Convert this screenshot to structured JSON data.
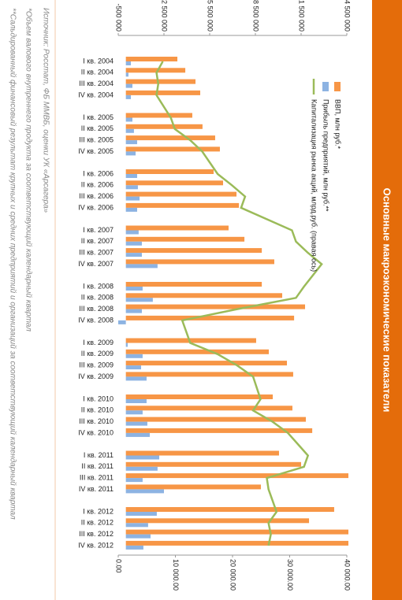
{
  "chart_data": {
    "type": "bar",
    "title": "Основные макроэкономические показатели",
    "categories": [
      "I кв. 2004",
      "II кв. 2004",
      "III кв. 2004",
      "IV кв. 2004",
      "I кв. 2005",
      "II кв. 2005",
      "III кв. 2005",
      "IV кв. 2005",
      "I кв. 2006",
      "II кв. 2006",
      "III кв. 2006",
      "IV кв. 2006",
      "I кв. 2007",
      "II кв. 2007",
      "III кв. 2007",
      "IV кв. 2007",
      "I кв. 2008",
      "II кв. 2008",
      "III кв. 2008",
      "IV кв. 2008",
      "I кв. 2009",
      "II кв. 2009",
      "III кв. 2009",
      "IV кв. 2009",
      "I кв. 2010",
      "II кв. 2010",
      "III кв. 2010",
      "IV кв. 2010",
      "I кв. 2011",
      "II кв. 2011",
      "III кв. 2011",
      "IV кв. 2011",
      "I кв. 2012",
      "II кв. 2012",
      "III кв. 2012",
      "IV кв. 2012"
    ],
    "series": [
      {
        "name": "ВВП, млн руб.*",
        "color": "#f79646",
        "values": [
          3380000,
          3900000,
          4570000,
          4880000,
          4360000,
          5030000,
          5860000,
          6170000,
          5760000,
          6380000,
          7260000,
          7420000,
          6740000,
          7780000,
          8920000,
          9740000,
          8920000,
          10260000,
          11760000,
          11040000,
          8550000,
          9380000,
          10570000,
          10980000,
          9640000,
          10930000,
          11810000,
          12230000,
          10050000,
          11500000,
          15000000,
          8860000,
          13670000,
          12020000,
          15000000,
          15200000
        ]
      },
      {
        "name": "Прибыль предприятий, млн руб.**",
        "color": "#8db3e2",
        "values": [
          330000,
          170000,
          430000,
          330000,
          430000,
          530000,
          740000,
          640000,
          740000,
          790000,
          900000,
          740000,
          840000,
          1050000,
          1050000,
          2080000,
          1100000,
          1770000,
          1050000,
          -500000,
          120000,
          1100000,
          1000000,
          1360000,
          1360000,
          1100000,
          1410000,
          1570000,
          2190000,
          2080000,
          1100000,
          2500000,
          2030000,
          1460000,
          1620000,
          1150000
        ]
      },
      {
        "name": "Капитализация рынка акций, млрд.руб. (правая ось)",
        "color": "#9bbb59",
        "type": "line",
        "axis": "y2",
        "values": [
          7800,
          6700,
          7000,
          6700,
          9200,
          9900,
          12600,
          14700,
          17400,
          19900,
          22200,
          21500,
          30400,
          31100,
          33200,
          35600,
          32500,
          31100,
          20800,
          11200,
          12600,
          17400,
          20800,
          23600,
          24900,
          23600,
          27000,
          29700,
          33200,
          32500,
          26000,
          26300,
          27700,
          26300,
          26700,
          26300
        ]
      }
    ],
    "ylim": [
      -500000,
      14500000
    ],
    "yticks": [
      {
        "value": -500000,
        "label": "-500 000"
      },
      {
        "value": 2500000,
        "label": "2 500 000"
      },
      {
        "value": 5500000,
        "label": "5 500 000"
      },
      {
        "value": 8500000,
        "label": "8 500 000"
      },
      {
        "value": 11500000,
        "label": "11 500 000"
      },
      {
        "value": 14500000,
        "label": "14 500 000"
      }
    ],
    "y2lim": [
      0,
      40000
    ],
    "y2ticks": [
      {
        "value": 0,
        "label": "0.00"
      },
      {
        "value": 10000,
        "label": "10 000.00"
      },
      {
        "value": 20000,
        "label": "20 000.00"
      },
      {
        "value": 30000,
        "label": "30 000.00"
      },
      {
        "value": 40000,
        "label": "40 000.00"
      }
    ],
    "legend": "top-left",
    "notes": [
      "Источник: Росстат, ФБ ММВБ, оценки УК «Арсагера»",
      "*Объем валового внутреннего продукта за соответствующий календарный квартал",
      "**Сальдированный финансовый результат крупных и средних предприятий и организаций за соответствующий календарный квартал"
    ]
  }
}
